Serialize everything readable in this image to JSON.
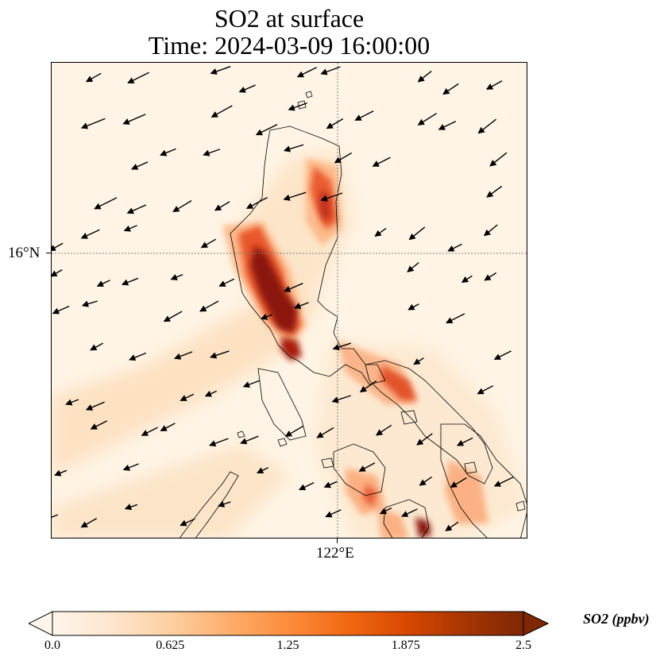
{
  "title": {
    "line1": "SO2 at surface",
    "line2": "Time: 2024-03-09 16:00:00"
  },
  "axes": {
    "lat_label": "16°N",
    "lon_label": "122°E"
  },
  "colorbar": {
    "label": "SO2 (ppbv)",
    "ticks": [
      "0.0",
      "0.625",
      "1.25",
      "1.875",
      "2.5"
    ],
    "range": [
      0.0,
      2.5
    ],
    "colors": [
      "#fff5eb",
      "#fee6ce",
      "#fdd0a2",
      "#fdae6b",
      "#fd8d3c",
      "#f16913",
      "#d94801",
      "#a63603",
      "#7f2704"
    ],
    "extend": "both"
  },
  "colors": {
    "background": "#fff4e5",
    "coastline": "#000000",
    "gridline": "#808080",
    "wind_arrow": "#000000"
  }
}
